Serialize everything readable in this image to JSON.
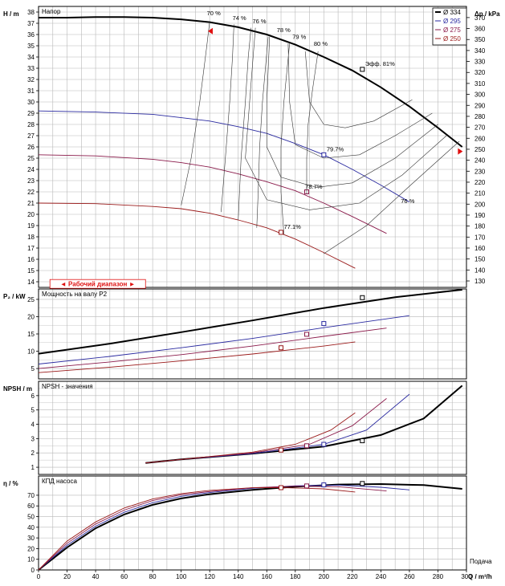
{
  "colors": {
    "d334": "#000000",
    "d295": "#2a2aa0",
    "d275": "#8a1a4a",
    "d250": "#9a1a1a",
    "grid": "#b8b8b8",
    "iso": "#333333",
    "range": "#e01010"
  },
  "chart_data": [
    {
      "type": "line",
      "title": "Напор",
      "ylabel": "H / m",
      "ylabel_right": "Δp / kPa",
      "ylim": [
        13.5,
        38.5
      ],
      "ylim_right": [
        130,
        375
      ],
      "xlim": [
        0,
        300
      ],
      "yticks": [
        14,
        15,
        16,
        17,
        18,
        19,
        20,
        21,
        22,
        23,
        24,
        25,
        26,
        27,
        28,
        29,
        30,
        31,
        32,
        33,
        34,
        35,
        36,
        37,
        38
      ],
      "yticks_right": [
        130,
        140,
        150,
        160,
        170,
        180,
        190,
        200,
        210,
        220,
        230,
        240,
        250,
        260,
        270,
        280,
        290,
        300,
        310,
        320,
        330,
        340,
        350,
        360,
        370
      ],
      "legend_position": "top-right",
      "legend": [
        "Ø 334",
        "Ø 295",
        "Ø 275",
        "Ø 250"
      ],
      "series": [
        {
          "name": "Ø 334",
          "color_key": "d334",
          "x": [
            0,
            20,
            40,
            60,
            80,
            100,
            120,
            140,
            160,
            180,
            200,
            220,
            240,
            260,
            280,
            297
          ],
          "y": [
            37.5,
            37.5,
            37.55,
            37.55,
            37.5,
            37.35,
            37.1,
            36.65,
            36.0,
            35.1,
            34.0,
            32.8,
            31.3,
            29.6,
            27.7,
            26.0
          ]
        },
        {
          "name": "Ø 295",
          "color_key": "d295",
          "x": [
            0,
            40,
            80,
            100,
            120,
            140,
            160,
            180,
            200,
            220,
            240,
            260
          ],
          "y": [
            29.2,
            29.1,
            28.9,
            28.6,
            28.3,
            27.8,
            27.2,
            26.3,
            25.3,
            24.0,
            22.6,
            21.1
          ]
        },
        {
          "name": "Ø 275",
          "color_key": "d275",
          "x": [
            0,
            40,
            80,
            100,
            120,
            140,
            160,
            180,
            200,
            220,
            244
          ],
          "y": [
            25.3,
            25.2,
            24.9,
            24.6,
            24.2,
            23.6,
            22.9,
            22.1,
            21.0,
            19.8,
            18.3
          ]
        },
        {
          "name": "Ø 250",
          "color_key": "d250",
          "x": [
            0,
            40,
            80,
            100,
            120,
            140,
            160,
            180,
            200,
            222
          ],
          "y": [
            21.0,
            20.95,
            20.7,
            20.5,
            20.1,
            19.5,
            18.8,
            17.8,
            16.6,
            15.2
          ]
        }
      ],
      "operating_points": [
        {
          "x": 227,
          "y": 32.9,
          "color_key": "d334"
        },
        {
          "x": 200,
          "y": 25.3,
          "color_key": "d295"
        },
        {
          "x": 188,
          "y": 22.0,
          "color_key": "d275"
        },
        {
          "x": 170,
          "y": 18.4,
          "color_key": "d250"
        }
      ],
      "efficiency_labels": [
        {
          "text": "70 %",
          "x": 118,
          "y": 37.7
        },
        {
          "text": "74 %",
          "x": 136,
          "y": 37.3
        },
        {
          "text": "76 %",
          "x": 150,
          "y": 37.0
        },
        {
          "text": "78 %",
          "x": 167,
          "y": 36.2
        },
        {
          "text": "79 %",
          "x": 178,
          "y": 35.6
        },
        {
          "text": "80 %",
          "x": 193,
          "y": 35.0
        },
        {
          "text": "Эфф.  81%",
          "x": 229,
          "y": 33.2
        },
        {
          "text": "79.7%",
          "x": 202,
          "y": 25.6
        },
        {
          "text": "78.7%",
          "x": 187,
          "y": 22.3
        },
        {
          "text": "77.1%",
          "x": 172,
          "y": 18.7
        },
        {
          "text": "76 %",
          "x": 254,
          "y": 21.0
        }
      ],
      "range_label": "Рабочий диапазон"
    },
    {
      "type": "line",
      "title": "Мощность на валу P2",
      "ylabel": "P₂ / kW",
      "ylim": [
        2,
        28
      ],
      "xlim": [
        0,
        300
      ],
      "yticks": [
        5,
        10,
        15,
        20,
        25
      ],
      "series": [
        {
          "name": "Ø 334",
          "color_key": "d334",
          "x": [
            0,
            50,
            100,
            150,
            200,
            250,
            297
          ],
          "y": [
            9.3,
            12.2,
            15.5,
            18.9,
            22.5,
            25.6,
            27.8
          ]
        },
        {
          "name": "Ø 295",
          "color_key": "d295",
          "x": [
            0,
            50,
            100,
            150,
            200,
            260
          ],
          "y": [
            6.3,
            8.5,
            11.0,
            13.7,
            16.8,
            20.3
          ]
        },
        {
          "name": "Ø 275",
          "color_key": "d275",
          "x": [
            0,
            50,
            100,
            150,
            200,
            244
          ],
          "y": [
            5.0,
            6.9,
            9.0,
            11.5,
            14.3,
            16.7
          ]
        },
        {
          "name": "Ø 250",
          "color_key": "d250",
          "x": [
            0,
            50,
            100,
            150,
            200,
            222
          ],
          "y": [
            3.8,
            5.4,
            7.2,
            9.2,
            11.5,
            12.7
          ]
        }
      ],
      "operating_points": [
        {
          "x": 227,
          "y": 25.5,
          "color_key": "d334"
        },
        {
          "x": 200,
          "y": 18.0,
          "color_key": "d295"
        },
        {
          "x": 188,
          "y": 14.9,
          "color_key": "d275"
        },
        {
          "x": 170,
          "y": 11.0,
          "color_key": "d250"
        }
      ]
    },
    {
      "type": "line",
      "title": "NPSH - значения",
      "ylabel": "NPSH / m",
      "ylim": [
        0.5,
        7.0
      ],
      "xlim": [
        0,
        300
      ],
      "yticks": [
        1,
        2,
        3,
        4,
        5,
        6
      ],
      "series": [
        {
          "name": "Ø 334",
          "color_key": "d334",
          "x": [
            75,
            100,
            150,
            200,
            240,
            270,
            297
          ],
          "y": [
            1.3,
            1.55,
            1.95,
            2.45,
            3.25,
            4.4,
            6.7
          ]
        },
        {
          "name": "Ø 295",
          "color_key": "d295",
          "x": [
            75,
            100,
            150,
            200,
            230,
            260
          ],
          "y": [
            1.3,
            1.55,
            1.95,
            2.6,
            3.6,
            6.1
          ]
        },
        {
          "name": "Ø 275",
          "color_key": "d275",
          "x": [
            75,
            100,
            150,
            190,
            220,
            244
          ],
          "y": [
            1.3,
            1.55,
            2.0,
            2.6,
            3.9,
            5.8
          ]
        },
        {
          "name": "Ø 250",
          "color_key": "d250",
          "x": [
            75,
            100,
            150,
            180,
            205,
            222
          ],
          "y": [
            1.3,
            1.55,
            2.05,
            2.6,
            3.6,
            4.8
          ]
        }
      ],
      "operating_points": [
        {
          "x": 227,
          "y": 2.85,
          "color_key": "d334"
        },
        {
          "x": 200,
          "y": 2.6,
          "color_key": "d295"
        },
        {
          "x": 188,
          "y": 2.5,
          "color_key": "d275"
        },
        {
          "x": 170,
          "y": 2.2,
          "color_key": "d250"
        }
      ]
    },
    {
      "type": "line",
      "title": "КПД насоса",
      "ylabel": "η / %",
      "xlabel": "Q / m³/h",
      "xlabel_extra": "Подача",
      "ylim": [
        0,
        88
      ],
      "xlim": [
        0,
        300
      ],
      "yticks": [
        0,
        10,
        20,
        30,
        40,
        50,
        60,
        70
      ],
      "xticks": [
        0,
        20,
        40,
        60,
        80,
        100,
        120,
        140,
        160,
        180,
        200,
        220,
        240,
        260,
        280,
        300
      ],
      "series": [
        {
          "name": "Ø 334",
          "color_key": "d334",
          "x": [
            0,
            20,
            40,
            60,
            80,
            100,
            120,
            150,
            180,
            210,
            240,
            270,
            297
          ],
          "y": [
            0,
            21,
            39,
            52,
            61,
            67,
            71,
            75,
            78,
            80,
            80.5,
            79.5,
            76
          ]
        },
        {
          "name": "Ø 295",
          "color_key": "d295",
          "x": [
            0,
            20,
            40,
            60,
            80,
            100,
            120,
            150,
            180,
            210,
            240,
            260
          ],
          "y": [
            0,
            23,
            41,
            54,
            63,
            69,
            72.5,
            76.5,
            78.8,
            79.5,
            77.5,
            75
          ]
        },
        {
          "name": "Ø 275",
          "color_key": "d275",
          "x": [
            0,
            20,
            40,
            60,
            80,
            100,
            120,
            150,
            180,
            210,
            244
          ],
          "y": [
            0,
            25,
            43,
            56,
            65,
            70.5,
            73.5,
            77,
            78.5,
            78,
            74
          ]
        },
        {
          "name": "Ø 250",
          "color_key": "d250",
          "x": [
            0,
            20,
            40,
            60,
            80,
            100,
            120,
            150,
            170,
            200,
            222
          ],
          "y": [
            0,
            27,
            45,
            58,
            66.5,
            71.5,
            74.5,
            77,
            77.2,
            76,
            73
          ]
        }
      ],
      "operating_points": [
        {
          "x": 227,
          "y": 81,
          "color_key": "d334"
        },
        {
          "x": 200,
          "y": 79.7,
          "color_key": "d295"
        },
        {
          "x": 188,
          "y": 78.7,
          "color_key": "d275"
        },
        {
          "x": 170,
          "y": 77.1,
          "color_key": "d250"
        }
      ]
    }
  ]
}
